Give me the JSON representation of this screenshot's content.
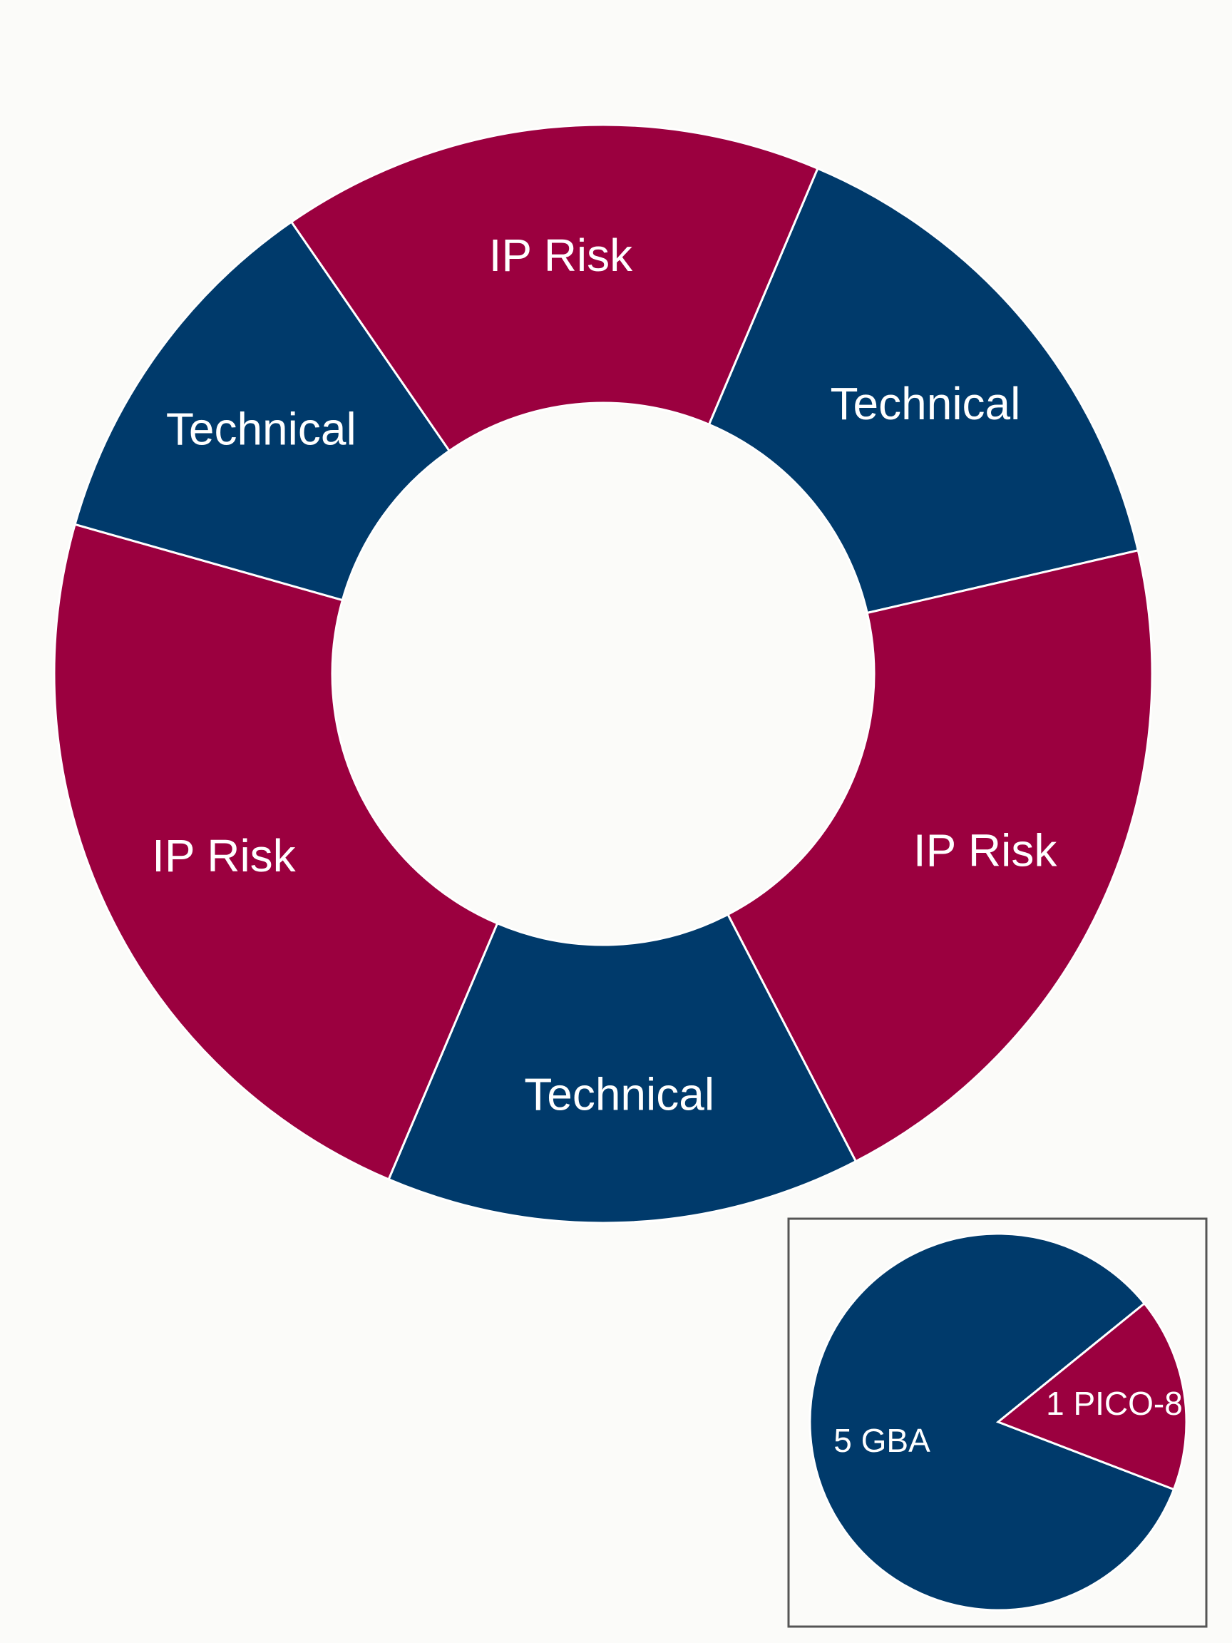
{
  "colors": {
    "technical": "#003a6b",
    "ip_risk": "#9b003f",
    "background": "#fbfbf9"
  },
  "chart_data": [
    {
      "type": "pie",
      "style": "donut",
      "slices": [
        {
          "label": "Technical",
          "value": 15,
          "category": "technical"
        },
        {
          "label": "IP Risk",
          "value": 21,
          "category": "ip_risk"
        },
        {
          "label": "Technical",
          "value": 14,
          "category": "technical"
        },
        {
          "label": "IP Risk",
          "value": 23,
          "category": "ip_risk"
        },
        {
          "label": "Technical",
          "value": 11,
          "category": "technical"
        },
        {
          "label": "IP Risk",
          "value": 16,
          "category": "ip_risk"
        }
      ]
    },
    {
      "type": "pie",
      "slices": [
        {
          "label": "5 GBA",
          "value": 5,
          "category": "technical"
        },
        {
          "label": "1 PICO-8",
          "value": 1,
          "category": "ip_risk"
        }
      ]
    }
  ]
}
